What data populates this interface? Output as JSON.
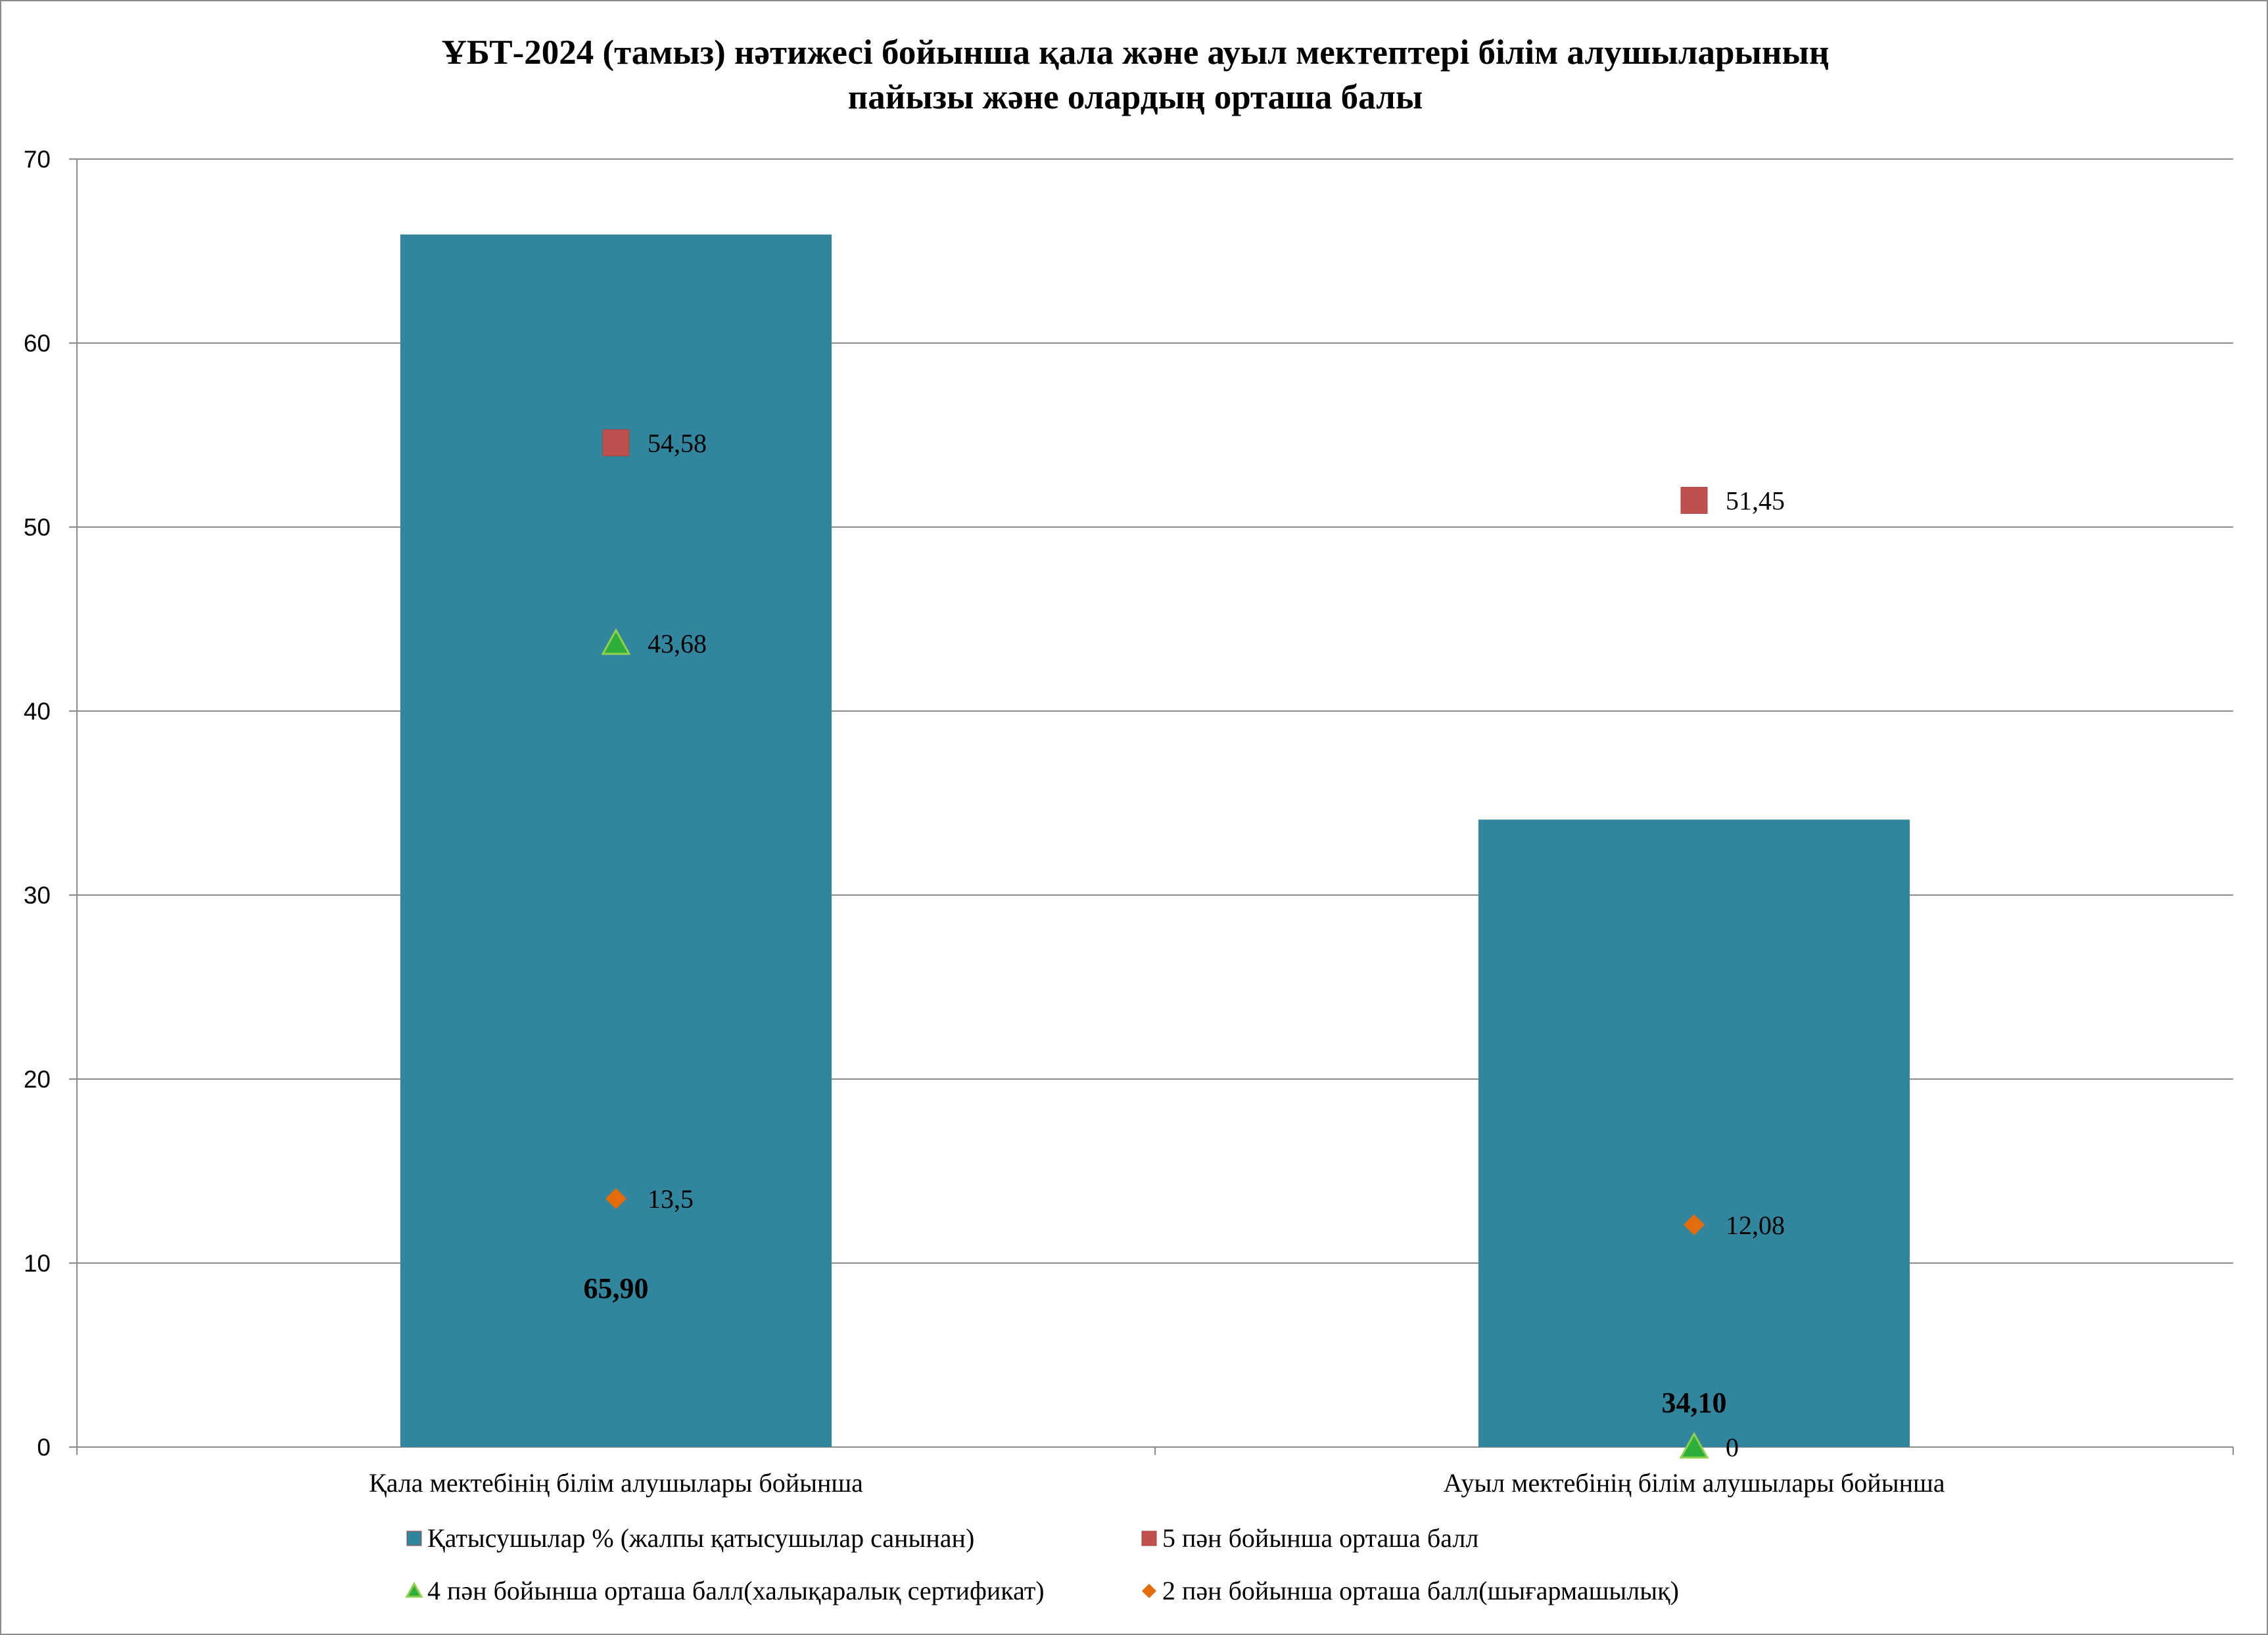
{
  "chart_data": {
    "type": "bar",
    "title_lines": [
      "ҰБТ-2024 (тамыз) нәтижесі бойынша қала және ауыл мектептері білім алушыларының",
      "пайызы және олардың орташа балы"
    ],
    "categories": [
      "Қала мектебінің білім алушылары бойынша",
      "Ауыл мектебінің білім алушылары бойынша"
    ],
    "ylim": [
      0,
      70
    ],
    "yticks": [
      0,
      10,
      20,
      30,
      40,
      50,
      60,
      70
    ],
    "grid": true,
    "legend_position": "bottom",
    "series": [
      {
        "name": "Қатысушылар % (жалпы қатысушылар санынан)",
        "kind": "bar",
        "marker": "square",
        "color": "#31859C",
        "values": [
          65.9,
          34.1
        ],
        "labels": [
          "65,90",
          "34,10"
        ]
      },
      {
        "name": "5 пән бойынша орташа балл",
        "kind": "marker",
        "marker": "square",
        "color": "#C0504D",
        "values": [
          54.58,
          51.45
        ],
        "labels": [
          "54,58",
          "51,45"
        ]
      },
      {
        "name": "4 пән бойынша орташа балл(халықаралық сертификат)",
        "kind": "marker",
        "marker": "triangle",
        "color": "#2EAE3A",
        "values": [
          43.68,
          0
        ],
        "labels": [
          "43,68",
          "0"
        ]
      },
      {
        "name": "2 пән бойынша орташа балл(шығармашылық)",
        "kind": "marker",
        "marker": "diamond",
        "color": "#E46C0A",
        "values": [
          13.5,
          12.08
        ],
        "labels": [
          "13,5",
          "12,08"
        ]
      }
    ]
  }
}
